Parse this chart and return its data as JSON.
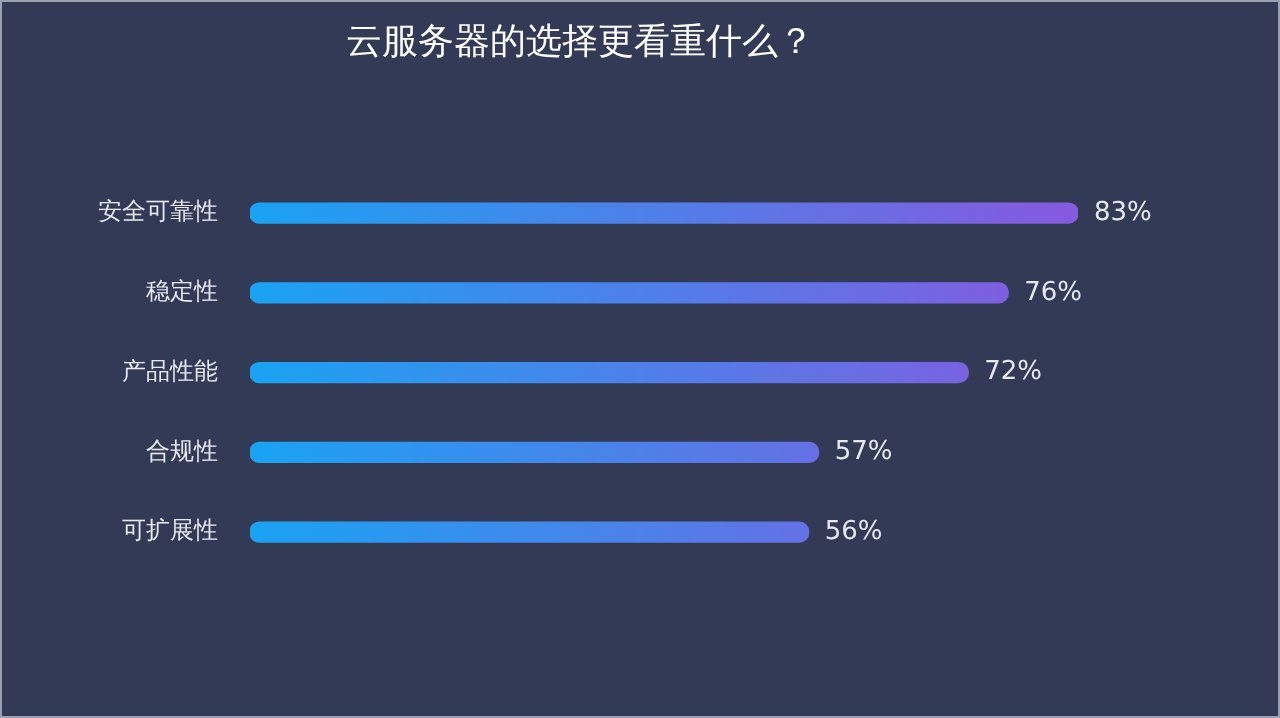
{
  "chart_data": {
    "type": "bar",
    "orientation": "horizontal",
    "title": "云服务器的选择更看重什么？",
    "categories": [
      "安全可靠性",
      "稳定性",
      "产品性能",
      "合规性",
      "可扩展性"
    ],
    "values": [
      83,
      76,
      72,
      57,
      56
    ],
    "value_labels": [
      "83%",
      "76%",
      "72%",
      "57%",
      "56%"
    ],
    "color": "#1aa3f3",
    "grid": false,
    "legend": false
  }
}
